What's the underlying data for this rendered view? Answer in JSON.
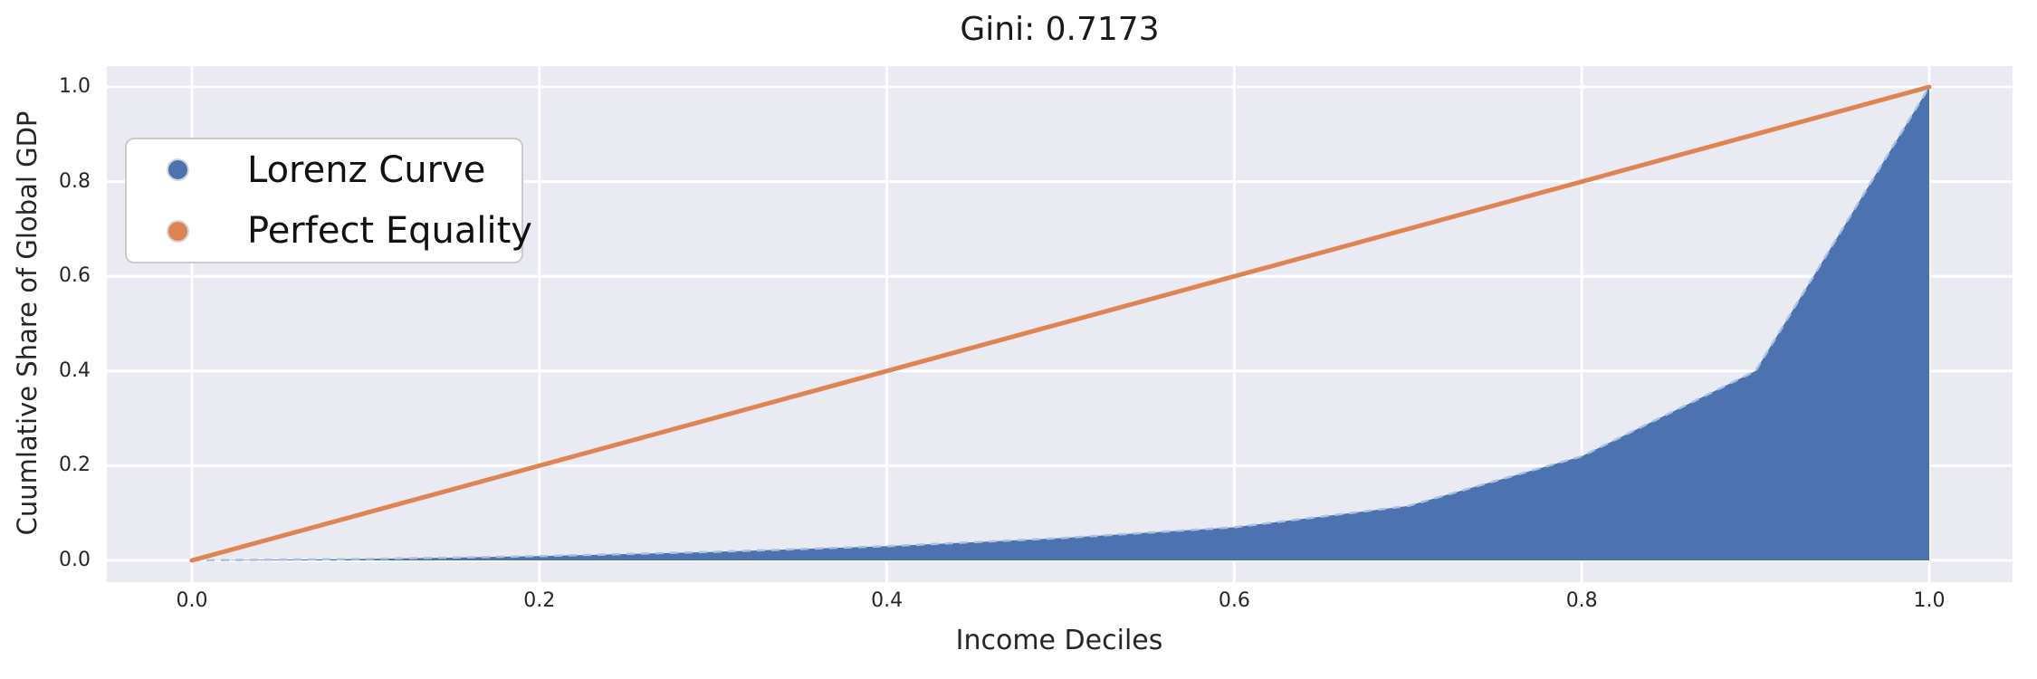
{
  "chart_data": {
    "type": "area",
    "title": "Gini: 0.7173",
    "gini": 0.7173,
    "xlabel": "Income Deciles",
    "ylabel": "Cuumlative Share of Global GDP",
    "x": [
      0.0,
      0.1,
      0.2,
      0.3,
      0.4,
      0.5,
      0.6,
      0.7,
      0.8,
      0.9,
      1.0
    ],
    "series": [
      {
        "name": "Lorenz Curve",
        "color": "#4c72b0",
        "edge_color": "#a9c2e3",
        "style": "filled-area-dashed-edge",
        "values": [
          0.0,
          0.003,
          0.009,
          0.018,
          0.03,
          0.047,
          0.07,
          0.115,
          0.22,
          0.4,
          1.0
        ]
      },
      {
        "name": "Perfect Equality",
        "color": "#dd8452",
        "style": "solid-line",
        "values": [
          0.0,
          0.1,
          0.2,
          0.3,
          0.4,
          0.5,
          0.6,
          0.7,
          0.8,
          0.9,
          1.0
        ]
      }
    ],
    "xticks": {
      "values": [
        0.0,
        0.2,
        0.4,
        0.6,
        0.8,
        1.0
      ],
      "labels": [
        "0.0",
        "0.2",
        "0.4",
        "0.6",
        "0.8",
        "1.0"
      ]
    },
    "yticks": {
      "values": [
        0.0,
        0.2,
        0.4,
        0.6,
        0.8,
        1.0
      ],
      "labels": [
        "0.0",
        "0.2",
        "0.4",
        "0.6",
        "0.8",
        "1.0"
      ]
    },
    "xlim": [
      -0.049,
      1.048
    ],
    "ylim": [
      -0.046,
      1.044
    ],
    "grid": true,
    "grid_color": "#ffffff",
    "plot_background": "#eaeaf2",
    "figure_background": "#ffffff",
    "legend_position": "upper left"
  },
  "legend": {
    "items": [
      {
        "label": "Lorenz Curve",
        "color": "#4c72b0"
      },
      {
        "label": "Perfect Equality",
        "color": "#dd8452"
      }
    ]
  }
}
